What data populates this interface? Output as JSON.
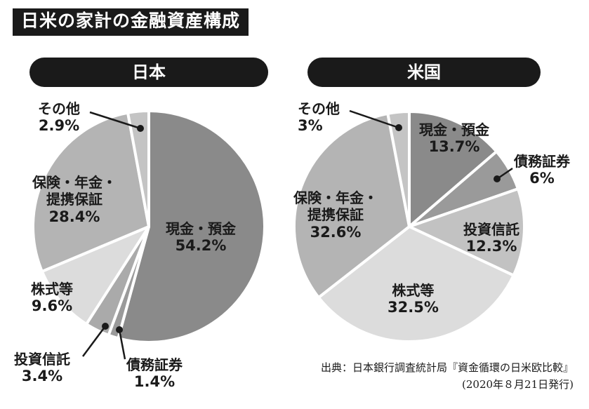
{
  "title": "日米の家計の金融資産構成",
  "chart_data": [
    {
      "type": "pie",
      "title": "日本",
      "slices": [
        {
          "label": "現金・預金",
          "value": 54.2,
          "value_label": "54.2%",
          "color": "#8a8a8a"
        },
        {
          "label": "債務証券",
          "value": 1.4,
          "value_label": "1.4%",
          "color": "#9a9a9a"
        },
        {
          "label": "投資信託",
          "value": 3.4,
          "value_label": "3.4%",
          "color": "#aaaaaa"
        },
        {
          "label": "株式等",
          "value": 9.6,
          "value_label": "9.6%",
          "color": "#dcdcdc"
        },
        {
          "label": "保険・年金・提携保証",
          "label_lines": [
            "保険・年金・",
            "提携保証"
          ],
          "value": 28.4,
          "value_label": "28.4%",
          "color": "#b4b4b4"
        },
        {
          "label": "その他",
          "value": 2.9,
          "value_label": "2.9%",
          "color": "#c4c4c4"
        }
      ]
    },
    {
      "type": "pie",
      "title": "米国",
      "slices": [
        {
          "label": "現金・預金",
          "value": 13.7,
          "value_label": "13.7%",
          "color": "#8a8a8a"
        },
        {
          "label": "債務証券",
          "value": 6,
          "value_label": "6%",
          "color": "#9a9a9a"
        },
        {
          "label": "投資信託",
          "value": 12.3,
          "value_label": "12.3%",
          "color": "#c2c2c2"
        },
        {
          "label": "株式等",
          "value": 32.5,
          "value_label": "32.5%",
          "color": "#dcdcdc"
        },
        {
          "label": "保険・年金・提携保証",
          "label_lines": [
            "保険・年金・",
            "提携保証"
          ],
          "value": 32.6,
          "value_label": "32.6%",
          "color": "#b4b4b4"
        },
        {
          "label": "その他",
          "value": 3,
          "value_label": "3%",
          "color": "#c4c4c4"
        }
      ]
    }
  ],
  "source": {
    "line1": "出典：日本銀行調査統計局『資金循環の日米欧比較』",
    "line2": "(2020年８月21日発行)"
  }
}
